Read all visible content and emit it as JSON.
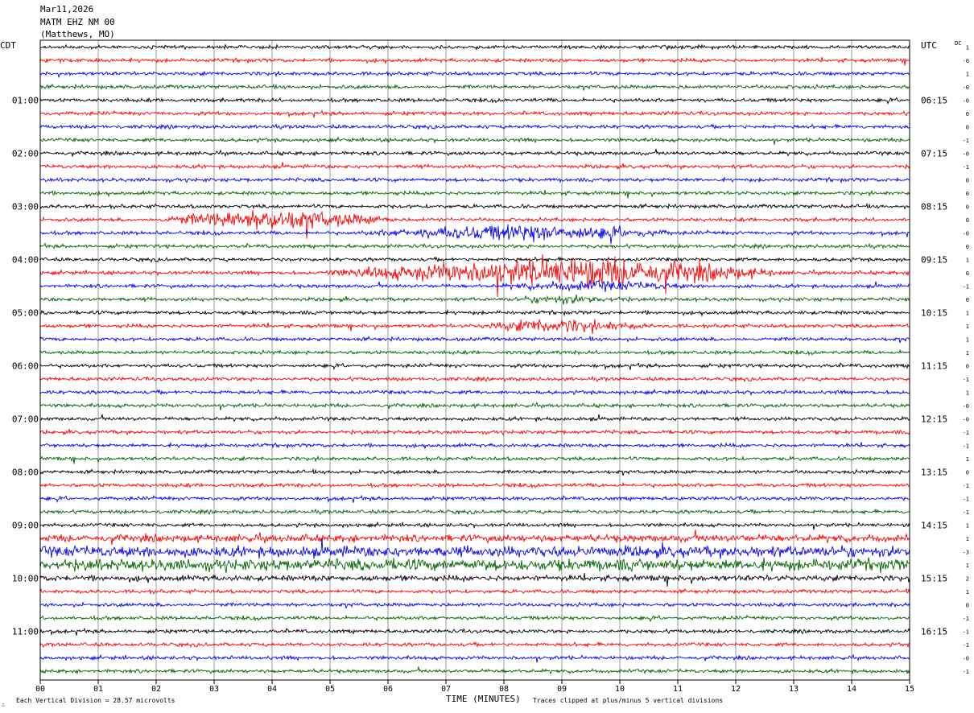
{
  "header": {
    "date": "Mar11,2026",
    "station": "MATM EHZ NM 00",
    "location": "(Matthews, MO)"
  },
  "left_axis_label": "CDT",
  "right_axis_label": "UTC",
  "dc_label": "DC",
  "footer": {
    "scale_text": "Each Vertical Division =   28.57 microvolts",
    "clip_text": "Traces clipped at plus/minus 5 vertical divisions",
    "mark": "∴"
  },
  "colors": {
    "black": "#000000",
    "red": "#ff0000",
    "blue": "#0000ff",
    "green": "#006400",
    "grid": "#808080"
  },
  "chart_data": {
    "type": "line",
    "title": "",
    "xlabel": "TIME (MINUTES)",
    "xlim": [
      0,
      15
    ],
    "x_ticks": [
      "00",
      "01",
      "02",
      "03",
      "04",
      "05",
      "06",
      "07",
      "08",
      "09",
      "10",
      "11",
      "12",
      "13",
      "14",
      "15"
    ],
    "trace_minutes": 15,
    "color_cycle": [
      "black",
      "red",
      "blue",
      "green"
    ],
    "left_time_labels": [
      {
        "row": 4,
        "label": "01:00"
      },
      {
        "row": 8,
        "label": "02:00"
      },
      {
        "row": 12,
        "label": "03:00"
      },
      {
        "row": 16,
        "label": "04:00"
      },
      {
        "row": 20,
        "label": "05:00"
      },
      {
        "row": 24,
        "label": "06:00"
      },
      {
        "row": 28,
        "label": "07:00"
      },
      {
        "row": 32,
        "label": "08:00"
      },
      {
        "row": 36,
        "label": "09:00"
      },
      {
        "row": 40,
        "label": "10:00"
      },
      {
        "row": 44,
        "label": "11:00"
      }
    ],
    "right_time_labels": [
      {
        "row": 4,
        "label": "06:15"
      },
      {
        "row": 8,
        "label": "07:15"
      },
      {
        "row": 12,
        "label": "08:15"
      },
      {
        "row": 16,
        "label": "09:15"
      },
      {
        "row": 20,
        "label": "10:15"
      },
      {
        "row": 24,
        "label": "11:15"
      },
      {
        "row": 28,
        "label": "12:15"
      },
      {
        "row": 32,
        "label": "13:15"
      },
      {
        "row": 36,
        "label": "14:15"
      },
      {
        "row": 40,
        "label": "15:15"
      },
      {
        "row": 44,
        "label": "16:15"
      }
    ],
    "dc_offsets": [
      "1",
      "-0",
      "1",
      "-0",
      "-0",
      "0",
      "0",
      "-1",
      "-0",
      "-1",
      "0",
      "0",
      "0",
      "0",
      "-0",
      "0",
      "1",
      "0",
      "-1",
      "0",
      "1",
      "1",
      "1",
      "1",
      "0",
      "-1",
      "1",
      "-0",
      "-0",
      "-1",
      "-1",
      "1",
      "0",
      "-1",
      "-1",
      "-1",
      "1",
      "1",
      "-3",
      "1",
      "2",
      "1",
      "0",
      "-1",
      "-1",
      "-1",
      "-0",
      "-1"
    ],
    "traces": {
      "row_count": 48,
      "baseline_amplitude_divisions": 0.5,
      "clip_divisions": 5,
      "events": [
        {
          "row": 13,
          "start_min": 1.8,
          "end_min": 6.4,
          "peak_min": 4.0,
          "amplitude_divisions": 3.2
        },
        {
          "row": 14,
          "start_min": 5.2,
          "end_min": 11.3,
          "peak_min": 8.5,
          "amplitude_divisions": 2.6
        },
        {
          "row": 17,
          "start_min": 4.6,
          "end_min": 13.0,
          "peak_min": 9.5,
          "amplitude_divisions": 4.5
        },
        {
          "row": 18,
          "start_min": 7.5,
          "end_min": 11.8,
          "peak_min": 9.5,
          "amplitude_divisions": 1.6
        },
        {
          "row": 19,
          "start_min": 7.8,
          "end_min": 10.6,
          "peak_min": 9.0,
          "amplitude_divisions": 1.4
        },
        {
          "row": 21,
          "start_min": 7.3,
          "end_min": 10.8,
          "peak_min": 8.8,
          "amplitude_divisions": 2.2
        }
      ],
      "noisy_rows": [
        {
          "row": 37,
          "amplitude_divisions": 1.0
        },
        {
          "row": 38,
          "amplitude_divisions": 1.5
        },
        {
          "row": 39,
          "amplitude_divisions": 1.6
        },
        {
          "row": 40,
          "amplitude_divisions": 0.8
        }
      ]
    }
  }
}
